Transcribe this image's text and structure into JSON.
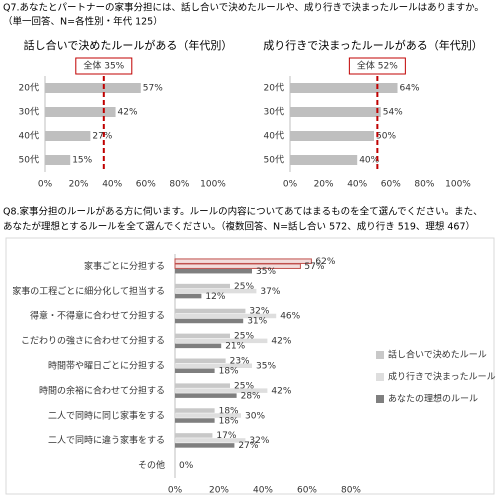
{
  "q7": [
    "Q7.あなたとパートナーの家事分担には、話し合いで決めたルールや、成り行きで決まったルールはありますか。",
    "（単一回答、N=各性別・年代 125）"
  ],
  "q8": [
    "Q8.家事分担のルールがある方に伺います。ルールの内容についてあてはまるものを全て選んでください。また、",
    "あなたが理想とするルールを全て選んでください。（複数回答、N=話し合い 572、成り行き 519、理想 467）"
  ],
  "chart_data": [
    {
      "type": "bar",
      "orientation": "horizontal",
      "title": "話し合いで決めたルールがある（年代別）",
      "categories": [
        "20代",
        "30代",
        "40代",
        "50代"
      ],
      "values": [
        57,
        42,
        27,
        15
      ],
      "value_labels": [
        "57%",
        "42%",
        "27%",
        "15%"
      ],
      "color": "#bfbfbf",
      "reference": {
        "value": 35,
        "label": "全体 35%"
      },
      "reference_color": "#c00000",
      "xlim": [
        0,
        100
      ],
      "xticks": [
        {
          "value": 0,
          "label": "0%"
        },
        {
          "value": 20,
          "label": "20%"
        },
        {
          "value": 40,
          "label": "40%"
        },
        {
          "value": 60,
          "label": "60%"
        },
        {
          "value": 80,
          "label": "80%"
        },
        {
          "value": 100,
          "label": "100%"
        }
      ]
    },
    {
      "type": "bar",
      "orientation": "horizontal",
      "title": "成り行きで決まったルールがある（年代別）",
      "categories": [
        "20代",
        "30代",
        "40代",
        "50代"
      ],
      "values": [
        64,
        54,
        50,
        40
      ],
      "value_labels": [
        "64%",
        "54%",
        "50%",
        "40%"
      ],
      "color": "#bfbfbf",
      "reference": {
        "value": 52,
        "label": "全体 52%"
      },
      "reference_color": "#c00000",
      "xlim": [
        0,
        100
      ],
      "xticks": [
        {
          "value": 0,
          "label": "0%"
        },
        {
          "value": 20,
          "label": "20%"
        },
        {
          "value": 40,
          "label": "40%"
        },
        {
          "value": 60,
          "label": "60%"
        },
        {
          "value": 80,
          "label": "80%"
        },
        {
          "value": 100,
          "label": "100%"
        }
      ]
    },
    {
      "type": "grouped_bar",
      "orientation": "horizontal",
      "categories": [
        "家事ごとに分担する",
        "家事の工程ごとに細分化して担当する",
        "得意・不得意に合わせて分担する",
        "こだわりの強さに合わせて分担する",
        "時間帯や曜日ごとに分担する",
        "時間の余裕に合わせて分担する",
        "二人で同時に同じ家事をする",
        "二人で同時に違う家事をする",
        "その他"
      ],
      "series": [
        {
          "name": "話し合いで決めたルール",
          "color": "#c8c8c8",
          "values": [
            62,
            25,
            32,
            25,
            23,
            25,
            18,
            17,
            0
          ],
          "value_labels": [
            "62%",
            "25%",
            "32%",
            "25%",
            "23%",
            "25%",
            "18%",
            "17%",
            null
          ]
        },
        {
          "name": "成り行きで決まったルール",
          "color": "#dedede",
          "values": [
            57,
            37,
            46,
            42,
            35,
            42,
            30,
            32,
            0
          ],
          "value_labels": [
            "57%",
            "37%",
            "46%",
            "42%",
            "35%",
            "42%",
            "30%",
            "32%",
            "0%"
          ]
        },
        {
          "name": "あなたの理想のルール",
          "color": "#7f7f7f",
          "values": [
            35,
            12,
            31,
            21,
            18,
            28,
            18,
            27,
            0
          ],
          "value_labels": [
            "35%",
            "12%",
            "31%",
            "21%",
            "18%",
            "28%",
            "18%",
            "27%",
            null
          ]
        }
      ],
      "highlight_index": 0,
      "highlight_color": "#c0504d",
      "highlight_fill": "#f2dcdb",
      "legend": "right",
      "xlim": [
        0,
        80
      ],
      "xticks": [
        {
          "value": 0,
          "label": "0%"
        },
        {
          "value": 20,
          "label": "20%"
        },
        {
          "value": 40,
          "label": "40%"
        },
        {
          "value": 60,
          "label": "60%"
        },
        {
          "value": 80,
          "label": "80%"
        }
      ]
    }
  ]
}
